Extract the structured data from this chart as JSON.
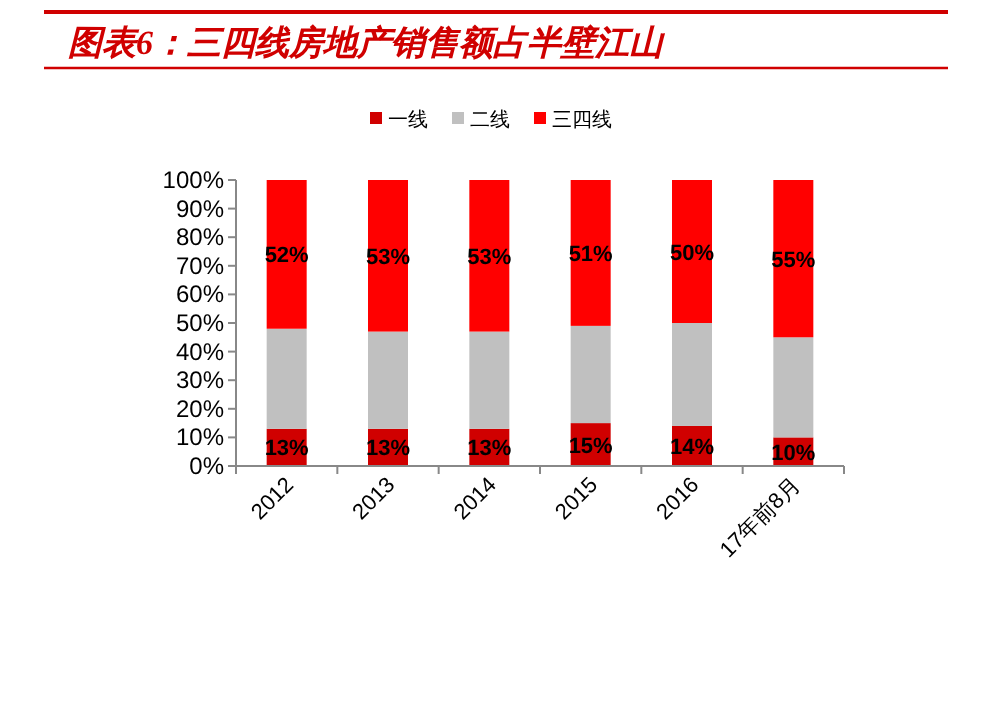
{
  "chart_data": {
    "type": "bar",
    "title": "图表6：三四线房地产销售额占半壁江山",
    "stacked": true,
    "legend": "top",
    "grid": false,
    "categories": [
      "2012",
      "2013",
      "2014",
      "2015",
      "2016",
      "17年前8月"
    ],
    "series": [
      {
        "name": "一线",
        "color": "#d00000",
        "values": [
          13,
          13,
          13,
          15,
          14,
          10
        ],
        "value_labels": [
          "13%",
          "13%",
          "13%",
          "15%",
          "14%",
          "10%"
        ]
      },
      {
        "name": "二线",
        "color": "#c0c0c0",
        "values": [
          35,
          34,
          34,
          34,
          36,
          35
        ],
        "value_labels": [
          null,
          null,
          null,
          null,
          null,
          null
        ]
      },
      {
        "name": "三四线",
        "color": "#ff0000",
        "values": [
          52,
          53,
          53,
          51,
          50,
          55
        ],
        "value_labels": [
          "52%",
          "53%",
          "53%",
          "51%",
          "50%",
          "55%"
        ]
      }
    ],
    "ylim": [
      0,
      100
    ],
    "yticks": [
      {
        "value": 0,
        "label": "0%"
      },
      {
        "value": 10,
        "label": "10%"
      },
      {
        "value": 20,
        "label": "20%"
      },
      {
        "value": 30,
        "label": "30%"
      },
      {
        "value": 40,
        "label": "40%"
      },
      {
        "value": 50,
        "label": "50%"
      },
      {
        "value": 60,
        "label": "60%"
      },
      {
        "value": 70,
        "label": "70%"
      },
      {
        "value": 80,
        "label": "80%"
      },
      {
        "value": 90,
        "label": "90%"
      },
      {
        "value": 100,
        "label": "100%"
      }
    ]
  }
}
